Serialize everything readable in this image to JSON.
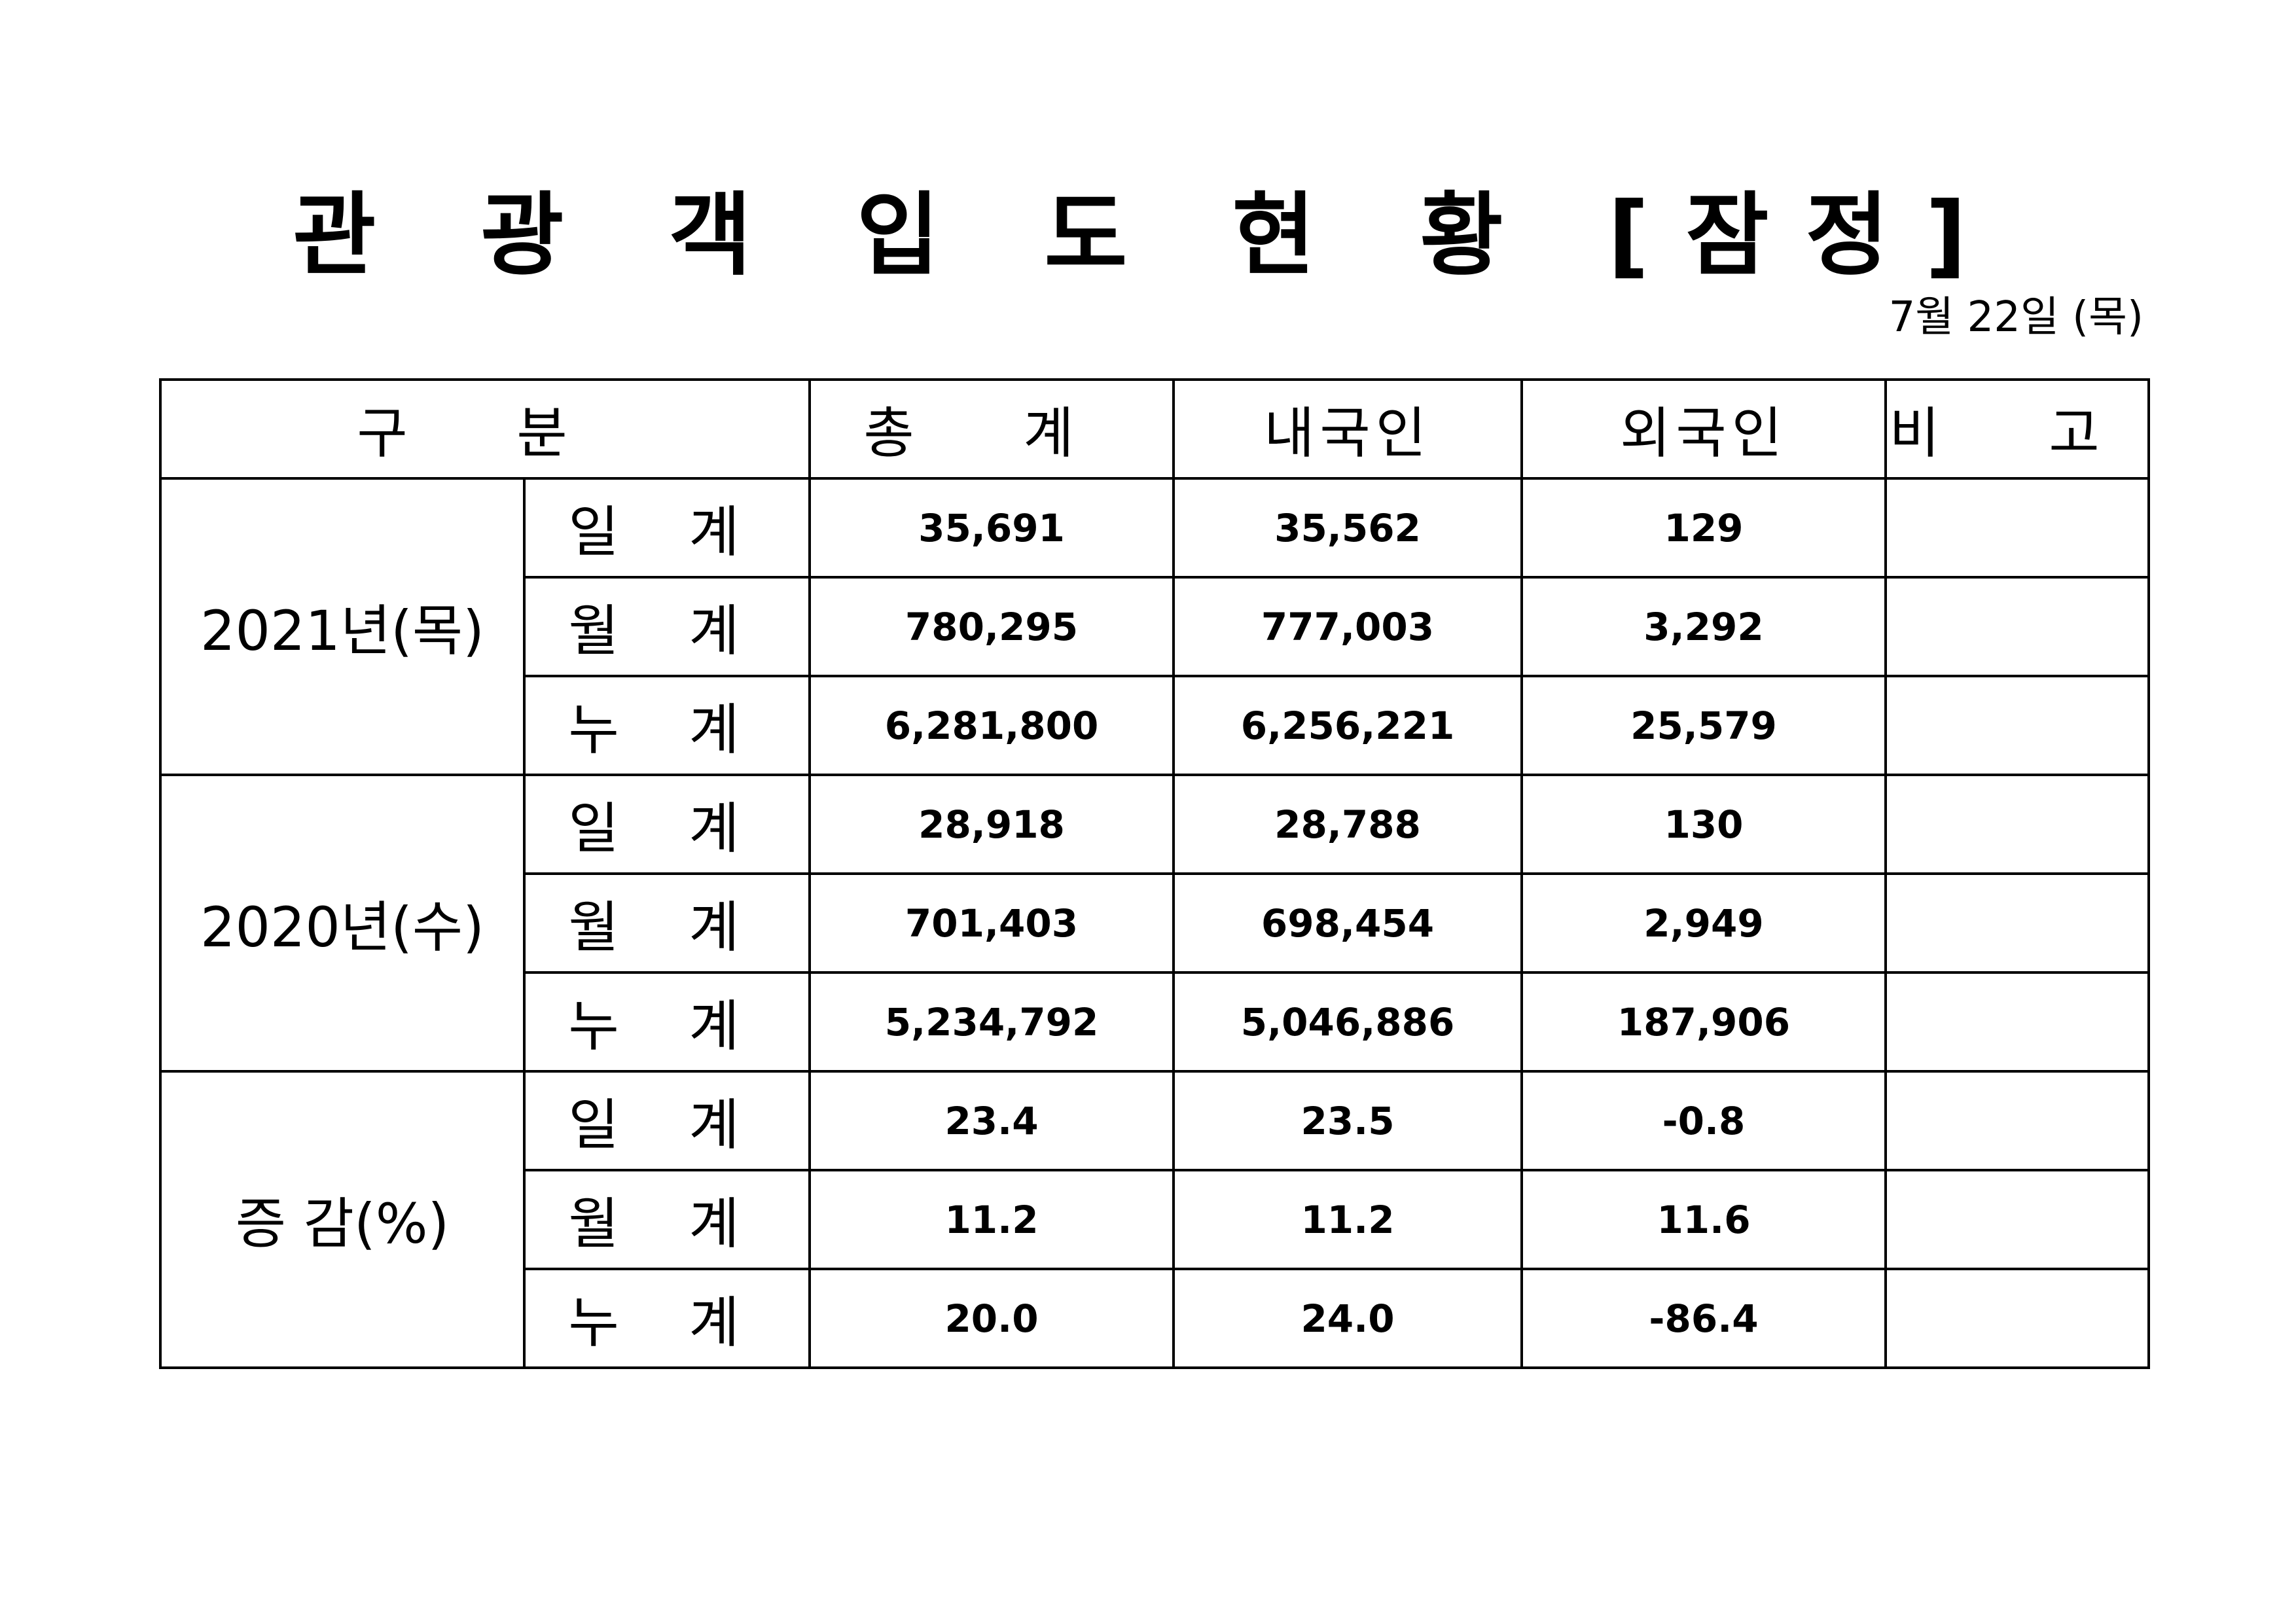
{
  "title": "관 광 객 입 도 현 황 [잠정]",
  "date": "7월  22일  (목)",
  "table": {
    "headers": [
      "구  분",
      "총  계",
      "내국인",
      "외국인",
      "비  고"
    ],
    "groups": [
      {
        "label": "2021년(목)",
        "rows": [
          {
            "label": "일 계",
            "total": "35,691",
            "domestic": "35,562",
            "foreign": "129",
            "note": ""
          },
          {
            "label": "월 계",
            "total": "780,295",
            "domestic": "777,003",
            "foreign": "3,292",
            "note": ""
          },
          {
            "label": "누 계",
            "total": "6,281,800",
            "domestic": "6,256,221",
            "foreign": "25,579",
            "note": ""
          }
        ]
      },
      {
        "label": "2020년(수)",
        "rows": [
          {
            "label": "일 계",
            "total": "28,918",
            "domestic": "28,788",
            "foreign": "130",
            "note": ""
          },
          {
            "label": "월 계",
            "total": "701,403",
            "domestic": "698,454",
            "foreign": "2,949",
            "note": ""
          },
          {
            "label": "누 계",
            "total": "5,234,792",
            "domestic": "5,046,886",
            "foreign": "187,906",
            "note": ""
          }
        ]
      },
      {
        "label": "증 감(%)",
        "rows": [
          {
            "label": "일 계",
            "total": "23.4",
            "domestic": "23.5",
            "foreign": "-0.8",
            "note": ""
          },
          {
            "label": "월 계",
            "total": "11.2",
            "domestic": "11.2",
            "foreign": "11.6",
            "note": ""
          },
          {
            "label": "누 계",
            "total": "20.0",
            "domestic": "24.0",
            "foreign": "-86.4",
            "note": ""
          }
        ]
      }
    ]
  }
}
